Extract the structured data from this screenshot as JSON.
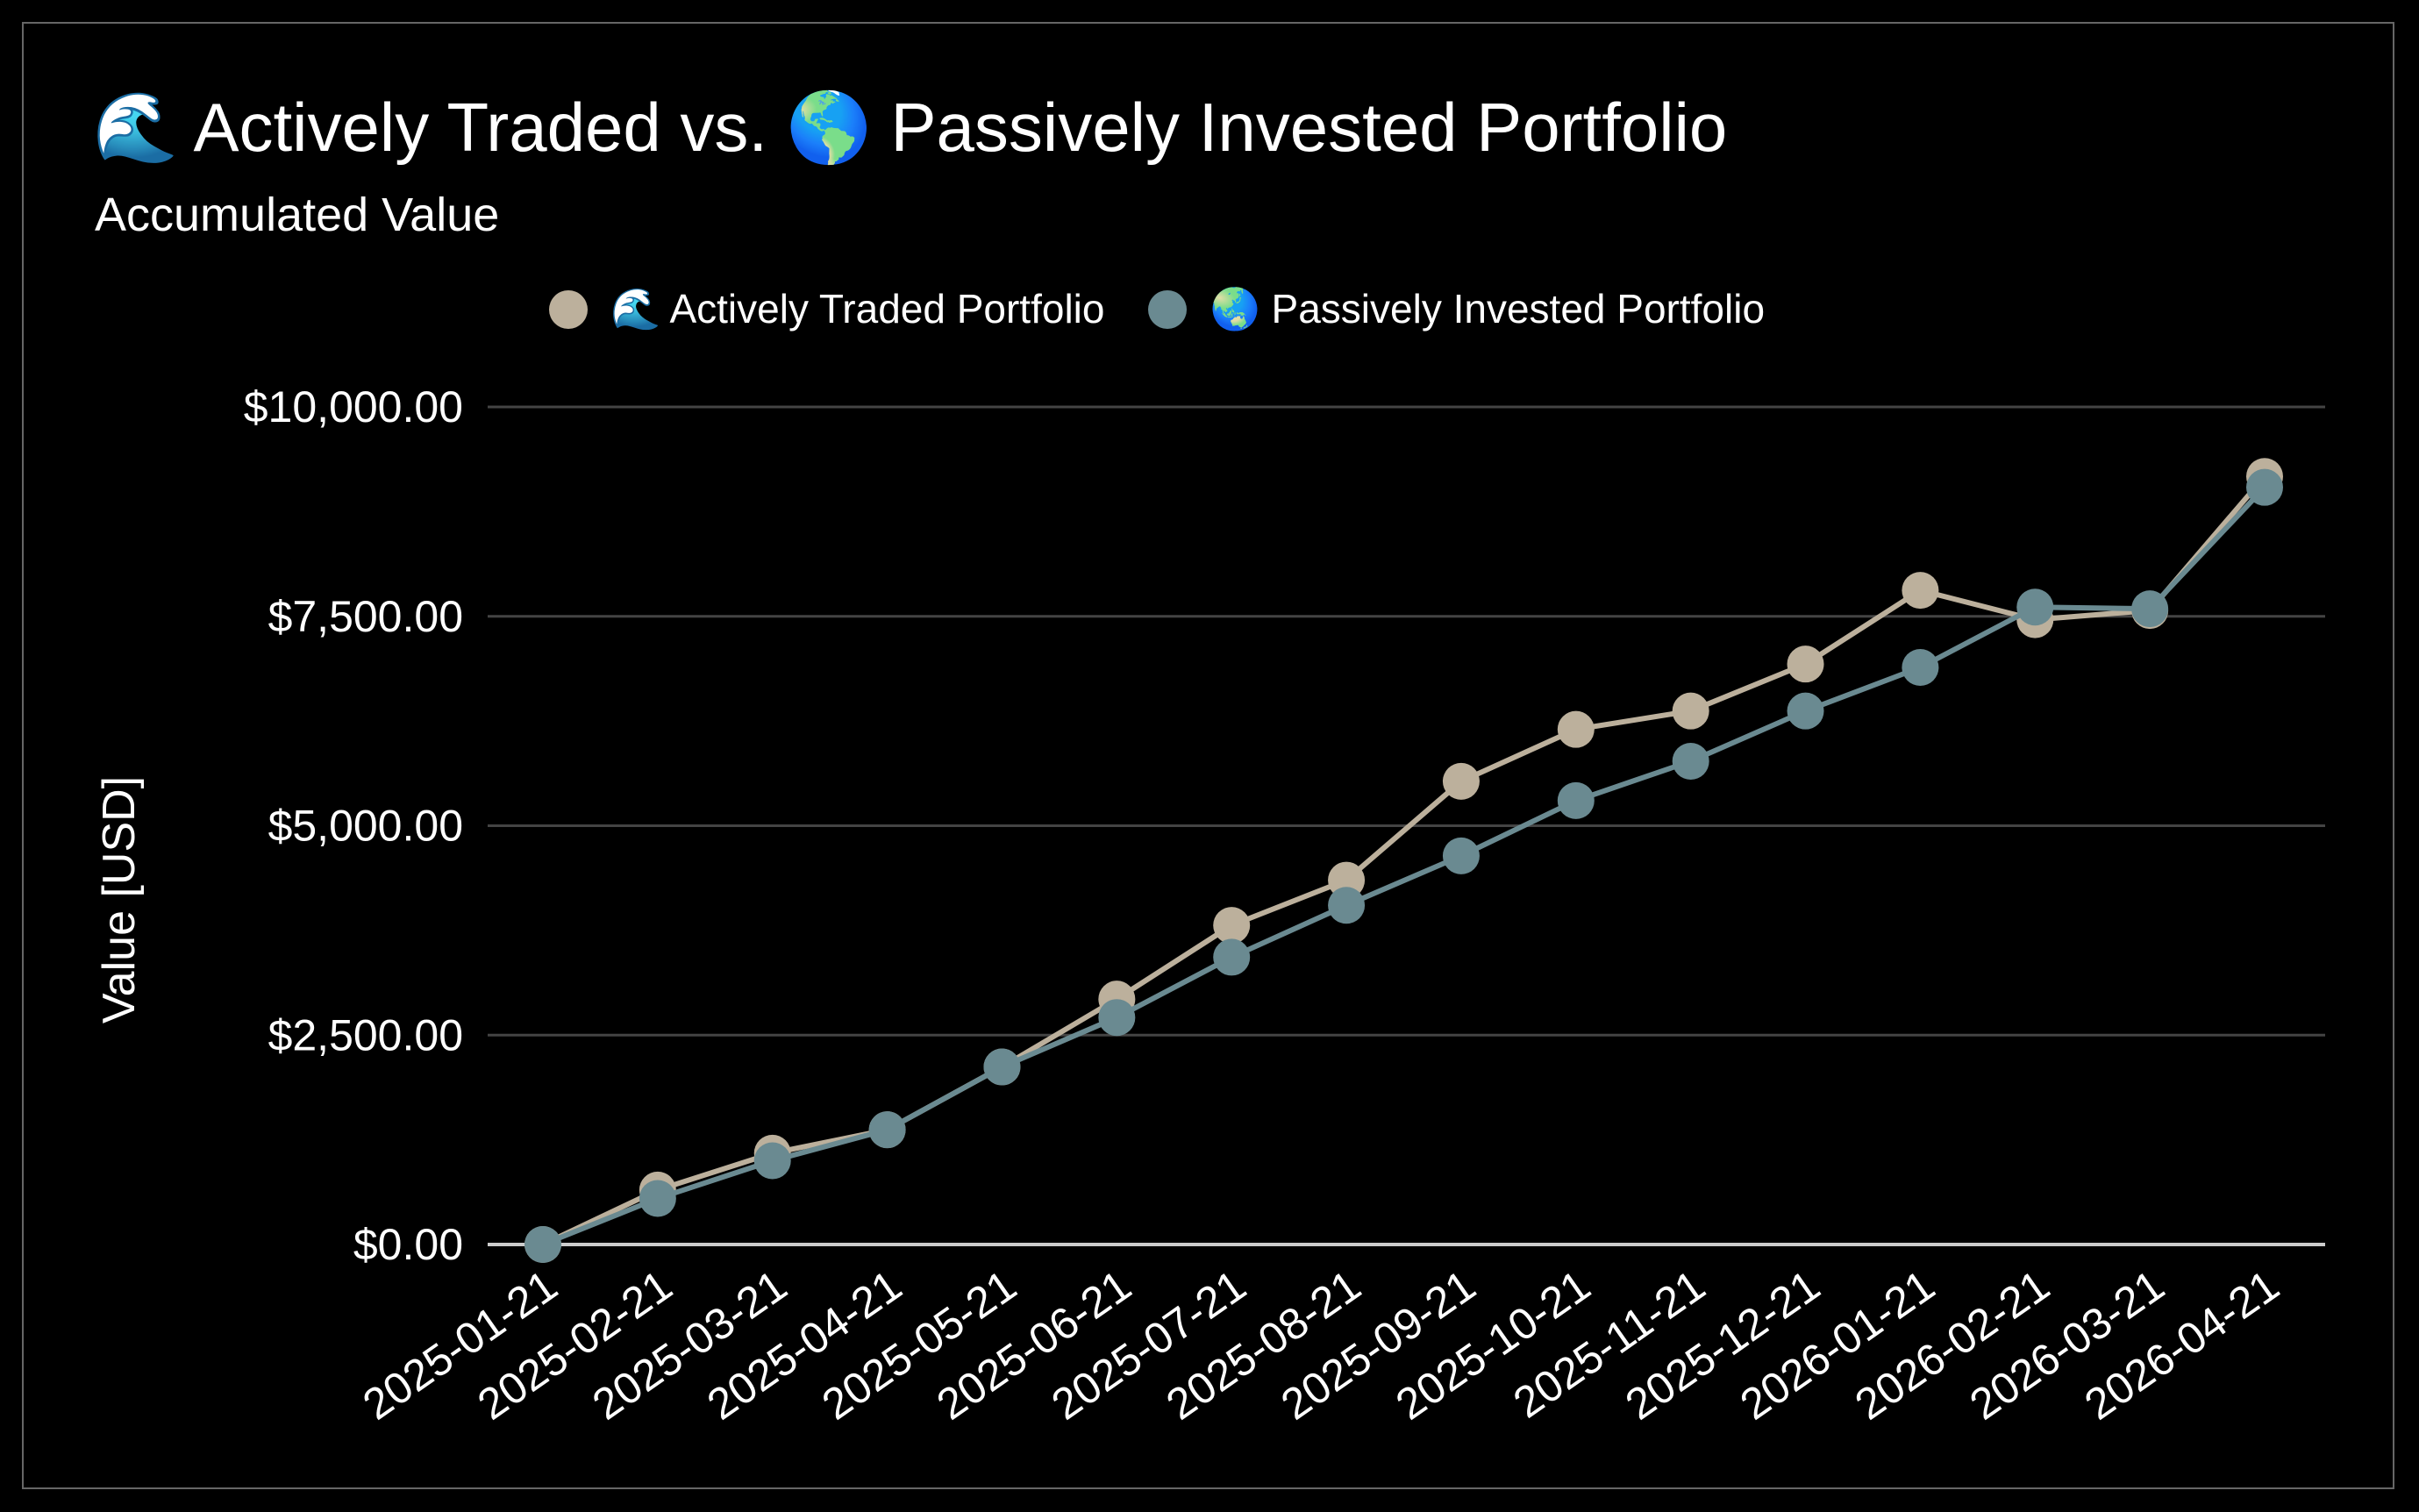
{
  "chart_data": {
    "type": "line",
    "title": "🌊 Actively Traded vs. 🌎 Passively Invested Portfolio",
    "subtitle": "Accumulated Value",
    "xlabel": "",
    "ylabel": "Value [USD]",
    "ylim": [
      0,
      10000
    ],
    "yticks": [
      "$0.00",
      "$2,500.00",
      "$5,000.00",
      "$7,500.00",
      "$10,000.00"
    ],
    "ytick_values": [
      0,
      2500,
      5000,
      7500,
      10000
    ],
    "grid": true,
    "legend_position": "top",
    "categories": [
      "2025-01-21",
      "2025-02-21",
      "2025-03-21",
      "2025-04-21",
      "2025-05-21",
      "2025-06-21",
      "2025-07-21",
      "2025-08-21",
      "2025-09-21",
      "2025-10-21",
      "2025-11-21",
      "2025-12-21",
      "2026-01-21",
      "2026-02-21",
      "2026-03-21",
      "2026-04-21"
    ],
    "series": [
      {
        "name": "🌊 Actively Traded Portfolio",
        "color": "#bcb09c",
        "values": [
          0,
          650,
          1090,
          1370,
          2120,
          2930,
          3810,
          4350,
          5530,
          6150,
          6370,
          6930,
          7810,
          7460,
          7570,
          9170
        ]
      },
      {
        "name": "🌏 Passively Invested Portfolio",
        "color": "#6a8a91",
        "values": [
          0,
          550,
          1000,
          1370,
          2120,
          2710,
          3430,
          4050,
          4640,
          5300,
          5770,
          6370,
          6890,
          7610,
          7590,
          9040
        ]
      }
    ]
  }
}
